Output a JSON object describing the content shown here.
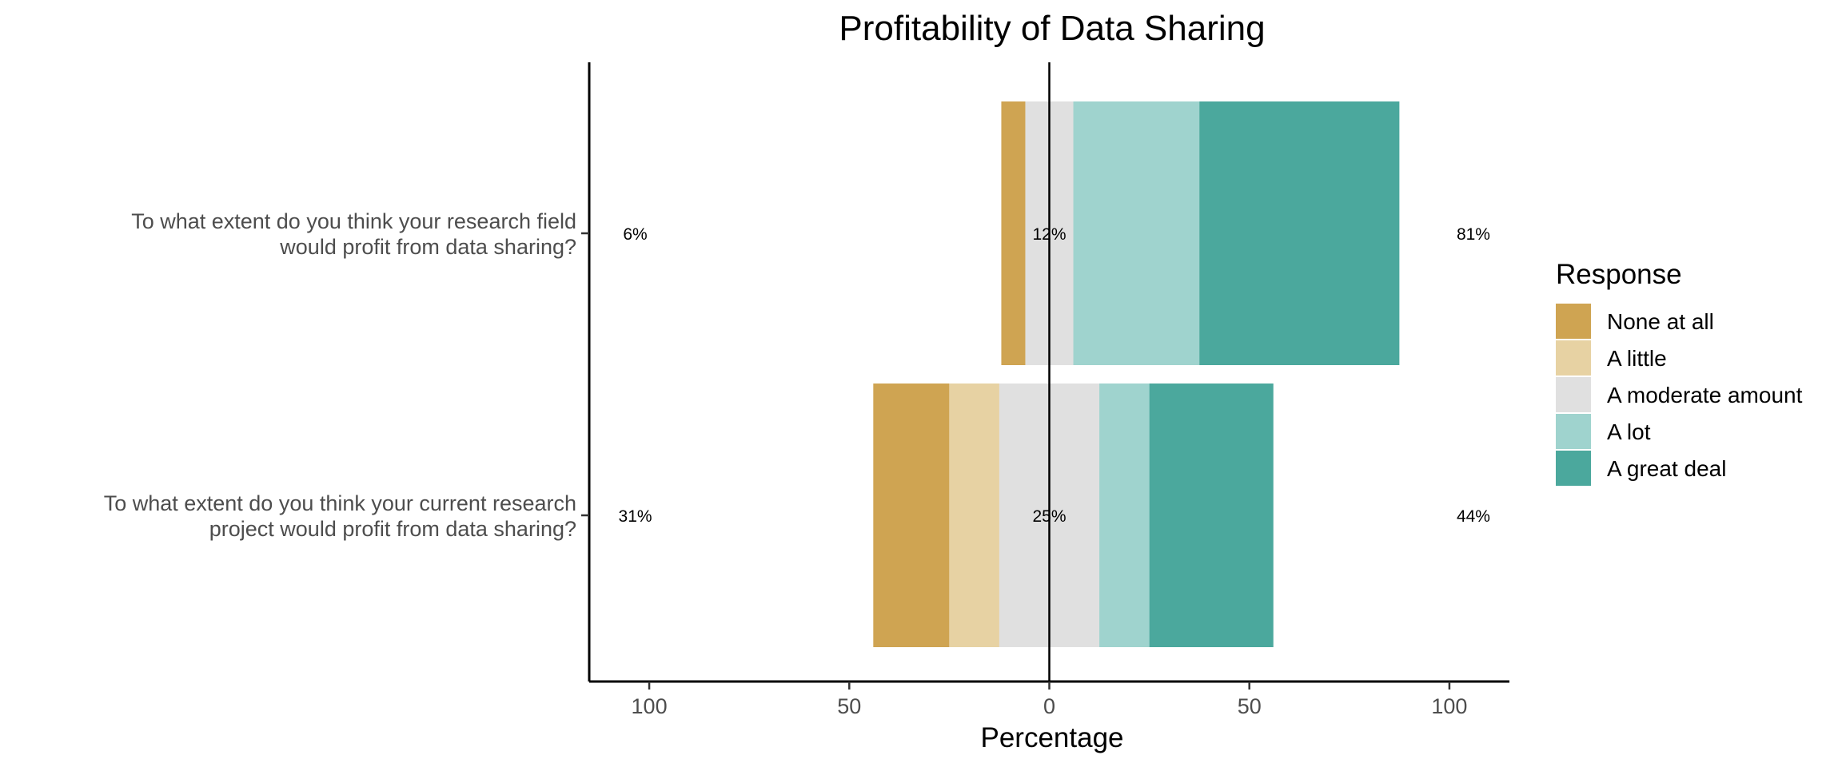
{
  "chart_data": {
    "type": "bar",
    "orientation": "horizontal-diverging-stacked",
    "title": "Profitability of Data Sharing",
    "xlabel": "Percentage",
    "ylabel": "",
    "xlim": [
      -115,
      115
    ],
    "xticks": [
      {
        "value": -100,
        "label": "100"
      },
      {
        "value": -50,
        "label": "50"
      },
      {
        "value": 0,
        "label": "0"
      },
      {
        "value": 50,
        "label": "50"
      },
      {
        "value": 100,
        "label": "100"
      }
    ],
    "grid": false,
    "legend": {
      "title": "Response",
      "position": "right",
      "items": [
        {
          "label": "None at all",
          "color": "#CFA452"
        },
        {
          "label": "A little",
          "color": "#E7D2A3"
        },
        {
          "label": "A moderate amount",
          "color": "#E0E0E0"
        },
        {
          "label": "A lot",
          "color": "#9FD3CE"
        },
        {
          "label": "A great deal",
          "color": "#4BA89D"
        }
      ]
    },
    "categories": [
      {
        "question_lines": [
          "To what extent do you think your research field",
          "would profit from data sharing?"
        ],
        "segments": [
          6,
          0,
          12,
          31.5,
          50
        ],
        "low_label": "6%",
        "neutral_label": "12%",
        "high_label": "81%"
      },
      {
        "question_lines": [
          "To what extent do you think your current research",
          "project would profit from data sharing?"
        ],
        "segments": [
          19,
          12.5,
          25,
          12.5,
          31
        ],
        "low_label": "31%",
        "neutral_label": "25%",
        "high_label": "44%"
      }
    ]
  }
}
